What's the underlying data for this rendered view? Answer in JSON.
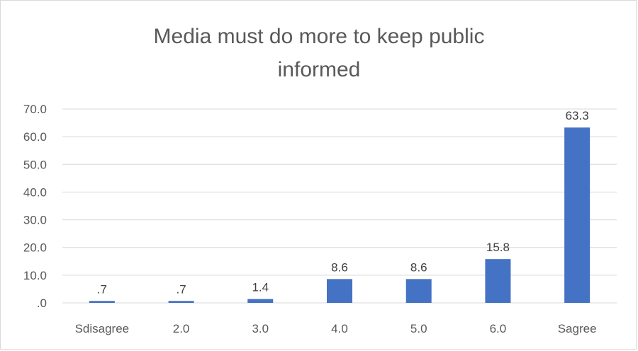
{
  "chart_data": {
    "type": "bar",
    "title_lines": [
      "Media must do more to keep public",
      "informed"
    ],
    "categories": [
      "Sdisagree",
      "2.0",
      "3.0",
      "4.0",
      "5.0",
      "6.0",
      "Sagree"
    ],
    "values": [
      0.7,
      0.7,
      1.4,
      8.6,
      8.6,
      15.8,
      63.3
    ],
    "data_labels": [
      ".7",
      ".7",
      "1.4",
      "8.6",
      "8.6",
      "15.8",
      "63.3"
    ],
    "ylim": [
      0,
      70
    ],
    "y_ticks": [
      ".0",
      "10.0",
      "20.0",
      "30.0",
      "40.0",
      "50.0",
      "60.0",
      "70.0"
    ],
    "grid": true,
    "bar_color": "#4472C4",
    "grid_color": "#d9d9d9"
  }
}
